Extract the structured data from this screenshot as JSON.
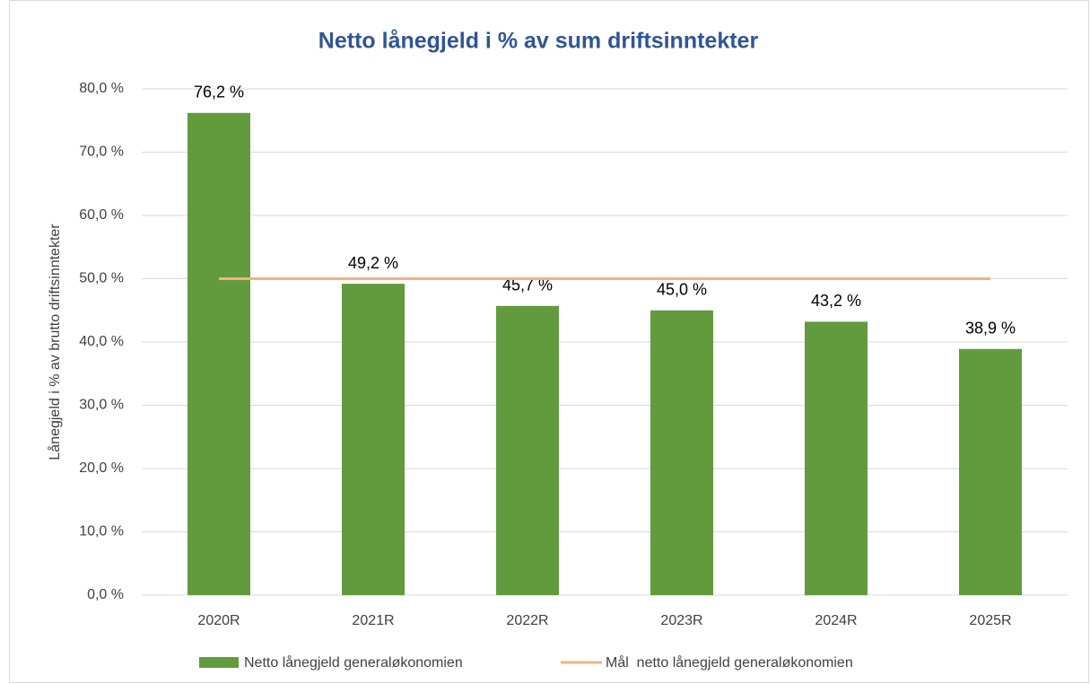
{
  "chart_data": {
    "type": "bar",
    "title": "Netto lånegjeld i % av sum driftsinntekter",
    "ylabel": "Lånegjeld i % av brutto driftsinntekter",
    "categories": [
      "2020R",
      "2021R",
      "2022R",
      "2023R",
      "2024R",
      "2025R"
    ],
    "series": [
      {
        "name": "Netto lånegjeld generaløkonomien",
        "type": "bar",
        "color": "#629b3e",
        "values": [
          76.2,
          49.2,
          45.7,
          45.0,
          43.2,
          38.9
        ],
        "value_labels": [
          "76,2 %",
          "49,2 %",
          "45,7 %",
          "45,0 %",
          "43,2 %",
          "38,9 %"
        ]
      },
      {
        "name": "Mål  netto lånegjeld generaløkonomien",
        "type": "line",
        "color": "#f4b183",
        "values": [
          50,
          50,
          50,
          50,
          50,
          50
        ]
      }
    ],
    "ylim": [
      0,
      80
    ],
    "yticks": [
      {
        "value": 0,
        "label": "0,0 %"
      },
      {
        "value": 10,
        "label": "10,0 %"
      },
      {
        "value": 20,
        "label": "20,0 %"
      },
      {
        "value": 30,
        "label": "30,0 %"
      },
      {
        "value": 40,
        "label": "40,0 %"
      },
      {
        "value": 50,
        "label": "50,0 %"
      },
      {
        "value": 60,
        "label": "60,0 %"
      },
      {
        "value": 70,
        "label": "70,0 %"
      },
      {
        "value": 80,
        "label": "80,0 %"
      }
    ],
    "grid": true,
    "legend": "bottom"
  }
}
